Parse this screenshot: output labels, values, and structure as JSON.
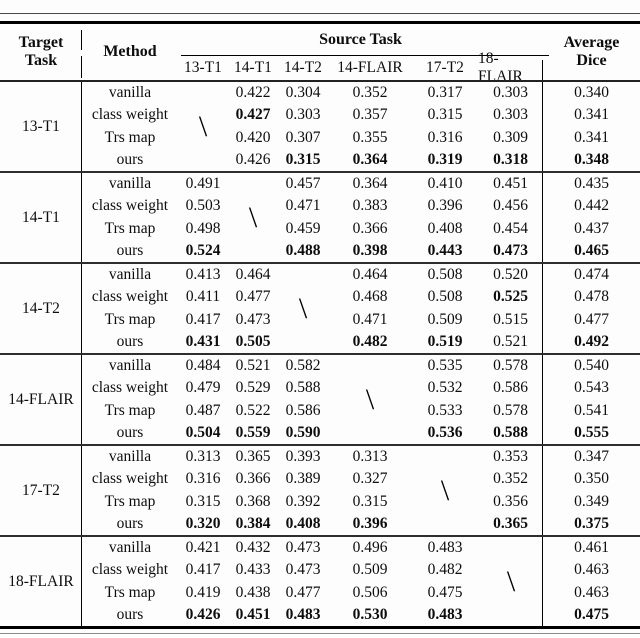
{
  "header": {
    "target_line1": "Target",
    "target_line2": "Task",
    "method": "Method",
    "source_task": "Source Task",
    "source_columns": [
      "13-T1",
      "14-T1",
      "14-T2",
      "14-FLAIR",
      "17-T2",
      "18-FLAIR"
    ],
    "average_line1": "Average",
    "average_line2": "Dice"
  },
  "diagonal_mark": "\\",
  "blocks": [
    {
      "target": "13-T1",
      "skip_index": 0,
      "rows": [
        {
          "method": "vanilla",
          "values": [
            null,
            "0.422",
            "0.304",
            "0.352",
            "0.317",
            "0.303"
          ],
          "bold": [
            0,
            0,
            0,
            0,
            0,
            0
          ],
          "avg": "0.340",
          "avg_bold": false
        },
        {
          "method": "class weight",
          "values": [
            null,
            "0.427",
            "0.303",
            "0.357",
            "0.315",
            "0.303"
          ],
          "bold": [
            0,
            1,
            0,
            0,
            0,
            0
          ],
          "avg": "0.341",
          "avg_bold": false
        },
        {
          "method": "Trs map",
          "values": [
            null,
            "0.420",
            "0.307",
            "0.355",
            "0.316",
            "0.309"
          ],
          "bold": [
            0,
            0,
            0,
            0,
            0,
            0
          ],
          "avg": "0.341",
          "avg_bold": false
        },
        {
          "method": "ours",
          "values": [
            null,
            "0.426",
            "0.315",
            "0.364",
            "0.319",
            "0.318"
          ],
          "bold": [
            0,
            0,
            1,
            1,
            1,
            1
          ],
          "avg": "0.348",
          "avg_bold": true
        }
      ]
    },
    {
      "target": "14-T1",
      "skip_index": 1,
      "rows": [
        {
          "method": "vanilla",
          "values": [
            "0.491",
            null,
            "0.457",
            "0.364",
            "0.410",
            "0.451"
          ],
          "bold": [
            0,
            0,
            0,
            0,
            0,
            0
          ],
          "avg": "0.435",
          "avg_bold": false
        },
        {
          "method": "class weight",
          "values": [
            "0.503",
            null,
            "0.471",
            "0.383",
            "0.396",
            "0.456"
          ],
          "bold": [
            0,
            0,
            0,
            0,
            0,
            0
          ],
          "avg": "0.442",
          "avg_bold": false
        },
        {
          "method": "Trs map",
          "values": [
            "0.498",
            null,
            "0.459",
            "0.366",
            "0.408",
            "0.454"
          ],
          "bold": [
            0,
            0,
            0,
            0,
            0,
            0
          ],
          "avg": "0.437",
          "avg_bold": false
        },
        {
          "method": "ours",
          "values": [
            "0.524",
            null,
            "0.488",
            "0.398",
            "0.443",
            "0.473"
          ],
          "bold": [
            1,
            0,
            1,
            1,
            1,
            1
          ],
          "avg": "0.465",
          "avg_bold": true
        }
      ]
    },
    {
      "target": "14-T2",
      "skip_index": 2,
      "rows": [
        {
          "method": "vanilla",
          "values": [
            "0.413",
            "0.464",
            null,
            "0.464",
            "0.508",
            "0.520"
          ],
          "bold": [
            0,
            0,
            0,
            0,
            0,
            0
          ],
          "avg": "0.474",
          "avg_bold": false
        },
        {
          "method": "class weight",
          "values": [
            "0.411",
            "0.477",
            null,
            "0.468",
            "0.508",
            "0.525"
          ],
          "bold": [
            0,
            0,
            0,
            0,
            0,
            1
          ],
          "avg": "0.478",
          "avg_bold": false
        },
        {
          "method": "Trs map",
          "values": [
            "0.417",
            "0.473",
            null,
            "0.471",
            "0.509",
            "0.515"
          ],
          "bold": [
            0,
            0,
            0,
            0,
            0,
            0
          ],
          "avg": "0.477",
          "avg_bold": false
        },
        {
          "method": "ours",
          "values": [
            "0.431",
            "0.505",
            null,
            "0.482",
            "0.519",
            "0.521"
          ],
          "bold": [
            1,
            1,
            0,
            1,
            1,
            0
          ],
          "avg": "0.492",
          "avg_bold": true
        }
      ]
    },
    {
      "target": "14-FLAIR",
      "skip_index": 3,
      "rows": [
        {
          "method": "vanilla",
          "values": [
            "0.484",
            "0.521",
            "0.582",
            null,
            "0.535",
            "0.578"
          ],
          "bold": [
            0,
            0,
            0,
            0,
            0,
            0
          ],
          "avg": "0.540",
          "avg_bold": false
        },
        {
          "method": "class weight",
          "values": [
            "0.479",
            "0.529",
            "0.588",
            null,
            "0.532",
            "0.586"
          ],
          "bold": [
            0,
            0,
            0,
            0,
            0,
            0
          ],
          "avg": "0.543",
          "avg_bold": false
        },
        {
          "method": "Trs map",
          "values": [
            "0.487",
            "0.522",
            "0.586",
            null,
            "0.533",
            "0.578"
          ],
          "bold": [
            0,
            0,
            0,
            0,
            0,
            0
          ],
          "avg": "0.541",
          "avg_bold": false
        },
        {
          "method": "ours",
          "values": [
            "0.504",
            "0.559",
            "0.590",
            null,
            "0.536",
            "0.588"
          ],
          "bold": [
            1,
            1,
            1,
            0,
            1,
            1
          ],
          "avg": "0.555",
          "avg_bold": true
        }
      ]
    },
    {
      "target": "17-T2",
      "skip_index": 4,
      "rows": [
        {
          "method": "vanilla",
          "values": [
            "0.313",
            "0.365",
            "0.393",
            "0.313",
            null,
            "0.353"
          ],
          "bold": [
            0,
            0,
            0,
            0,
            0,
            0
          ],
          "avg": "0.347",
          "avg_bold": false
        },
        {
          "method": "class weight",
          "values": [
            "0.316",
            "0.366",
            "0.389",
            "0.327",
            null,
            "0.352"
          ],
          "bold": [
            0,
            0,
            0,
            0,
            0,
            0
          ],
          "avg": "0.350",
          "avg_bold": false
        },
        {
          "method": "Trs map",
          "values": [
            "0.315",
            "0.368",
            "0.392",
            "0.315",
            null,
            "0.356"
          ],
          "bold": [
            0,
            0,
            0,
            0,
            0,
            0
          ],
          "avg": "0.349",
          "avg_bold": false
        },
        {
          "method": "ours",
          "values": [
            "0.320",
            "0.384",
            "0.408",
            "0.396",
            null,
            "0.365"
          ],
          "bold": [
            1,
            1,
            1,
            1,
            0,
            1
          ],
          "avg": "0.375",
          "avg_bold": true
        }
      ]
    },
    {
      "target": "18-FLAIR",
      "skip_index": 5,
      "rows": [
        {
          "method": "vanilla",
          "values": [
            "0.421",
            "0.432",
            "0.473",
            "0.496",
            "0.483",
            null
          ],
          "bold": [
            0,
            0,
            0,
            0,
            0,
            0
          ],
          "avg": "0.461",
          "avg_bold": false
        },
        {
          "method": "class weight",
          "values": [
            "0.417",
            "0.433",
            "0.473",
            "0.509",
            "0.482",
            null
          ],
          "bold": [
            0,
            0,
            0,
            0,
            0,
            0
          ],
          "avg": "0.463",
          "avg_bold": false
        },
        {
          "method": "Trs map",
          "values": [
            "0.419",
            "0.438",
            "0.477",
            "0.506",
            "0.475",
            null
          ],
          "bold": [
            0,
            0,
            0,
            0,
            0,
            0
          ],
          "avg": "0.463",
          "avg_bold": false
        },
        {
          "method": "ours",
          "values": [
            "0.426",
            "0.451",
            "0.483",
            "0.530",
            "0.483",
            null
          ],
          "bold": [
            1,
            1,
            1,
            1,
            1,
            0
          ],
          "avg": "0.475",
          "avg_bold": true
        }
      ]
    }
  ]
}
